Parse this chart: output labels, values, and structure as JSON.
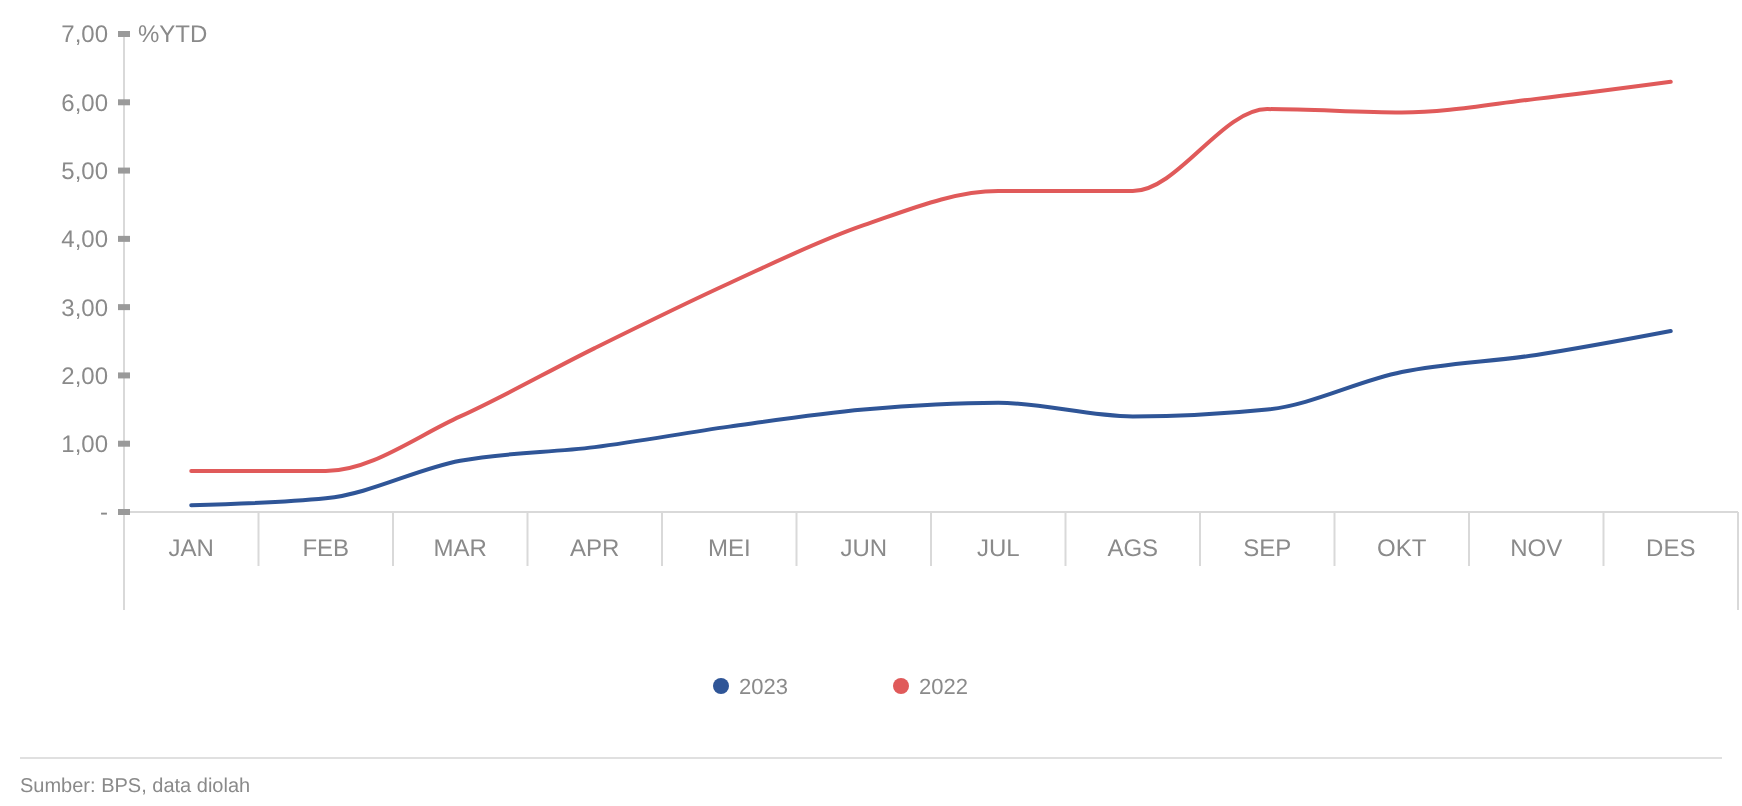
{
  "chart_data": {
    "type": "line",
    "ylabel": "%YTD",
    "categories": [
      "JAN",
      "FEB",
      "MAR",
      "APR",
      "MEI",
      "JUN",
      "JUL",
      "AGS",
      "SEP",
      "OKT",
      "NOV",
      "DES"
    ],
    "series": [
      {
        "name": "2023",
        "color": "#2f5597",
        "values": [
          0.1,
          0.2,
          0.75,
          0.95,
          1.25,
          1.5,
          1.6,
          1.4,
          1.5,
          2.05,
          2.3,
          2.65
        ]
      },
      {
        "name": "2022",
        "color": "#e05a5a",
        "values": [
          0.6,
          0.6,
          1.4,
          2.4,
          3.35,
          4.2,
          4.7,
          4.7,
          5.9,
          5.85,
          6.05,
          6.3
        ]
      }
    ],
    "ylim": [
      0,
      7
    ],
    "yticks": [
      {
        "value": 0,
        "label": "-"
      },
      {
        "value": 1,
        "label": "1,00"
      },
      {
        "value": 2,
        "label": "2,00"
      },
      {
        "value": 3,
        "label": "3,00"
      },
      {
        "value": 4,
        "label": "4,00"
      },
      {
        "value": 5,
        "label": "5,00"
      },
      {
        "value": 6,
        "label": "6,00"
      },
      {
        "value": 7,
        "label": "7,00"
      }
    ],
    "legend": "bottom",
    "grid": false,
    "annotations": [
      "Sumber: BPS, data diolah"
    ]
  }
}
